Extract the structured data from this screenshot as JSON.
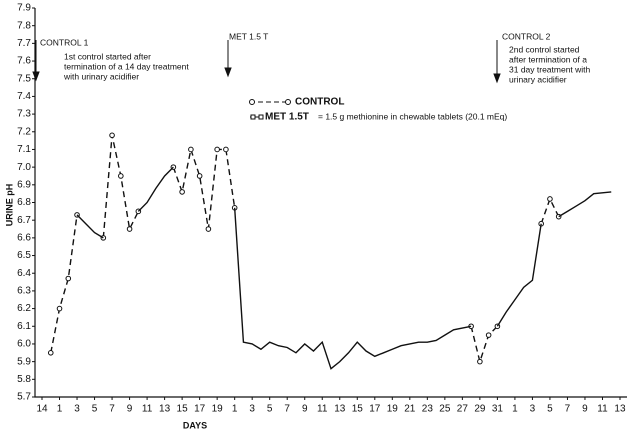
{
  "chart_data": {
    "type": "line",
    "y_label": "URINE pH",
    "x_label": "DAYS",
    "x": [
      1,
      2,
      3,
      4,
      5,
      6,
      7,
      8,
      9,
      10,
      11,
      12,
      13,
      14,
      15,
      16,
      17,
      18,
      19,
      20,
      21,
      22,
      23,
      24,
      25,
      26,
      27,
      28,
      29,
      30,
      31,
      32,
      33,
      34,
      35,
      36,
      37,
      38,
      39,
      40,
      41,
      42,
      43,
      44,
      45,
      46,
      47,
      49,
      50,
      51,
      52,
      53,
      54,
      55,
      56,
      57,
      58,
      59,
      60,
      61,
      62,
      63,
      65
    ],
    "series": [
      {
        "name": "CONTROL",
        "color": "#111111",
        "dashed": true,
        "marker": "circle",
        "values": [
          5.95,
          6.2,
          6.37,
          6.73,
          null,
          null,
          6.6,
          7.18,
          6.95,
          6.65,
          6.75,
          null,
          null,
          null,
          7.0,
          6.86,
          7.1,
          6.95,
          6.65,
          7.1,
          7.1,
          6.77,
          null,
          null,
          null,
          null,
          null,
          null,
          null,
          null,
          null,
          null,
          null,
          null,
          null,
          null,
          null,
          null,
          null,
          null,
          null,
          null,
          null,
          null,
          null,
          null,
          null,
          6.1,
          5.9,
          6.05,
          6.1,
          null,
          null,
          null,
          null,
          6.68,
          6.82,
          6.72,
          null,
          null,
          null,
          null,
          null
        ]
      },
      {
        "name": "MET 1.5T",
        "color": "#111111",
        "dashed": false,
        "marker": "square",
        "values": [
          null,
          null,
          null,
          6.73,
          6.68,
          6.63,
          6.6,
          null,
          null,
          null,
          6.75,
          6.8,
          6.88,
          6.95,
          7.0,
          null,
          null,
          null,
          null,
          null,
          null,
          6.77,
          6.01,
          6.0,
          5.97,
          6.01,
          5.99,
          5.98,
          5.95,
          6.0,
          5.96,
          6.01,
          5.86,
          5.9,
          5.95,
          6.01,
          5.96,
          5.93,
          5.95,
          5.97,
          5.99,
          6.0,
          6.01,
          6.01,
          6.02,
          6.05,
          6.08,
          6.1,
          null,
          null,
          6.1,
          6.18,
          6.25,
          6.32,
          6.36,
          6.68,
          null,
          6.72,
          6.75,
          6.78,
          6.81,
          6.85,
          6.86
        ]
      }
    ],
    "legend_note": "= 1.5 g methionine in chewable tablets  (20.1 mEq)",
    "xlim": [
      -0.8,
      66.8
    ],
    "xticks": [
      {
        "value": 0,
        "label": "14"
      },
      {
        "value": 2,
        "label": "1"
      },
      {
        "value": 4,
        "label": "3"
      },
      {
        "value": 6,
        "label": "5"
      },
      {
        "value": 8,
        "label": "7"
      },
      {
        "value": 10,
        "label": "9"
      },
      {
        "value": 12,
        "label": "11"
      },
      {
        "value": 14,
        "label": "13"
      },
      {
        "value": 16,
        "label": "15"
      },
      {
        "value": 18,
        "label": "17"
      },
      {
        "value": 20,
        "label": "19"
      },
      {
        "value": 22,
        "label": "1"
      },
      {
        "value": 24,
        "label": "3"
      },
      {
        "value": 26,
        "label": "5"
      },
      {
        "value": 28,
        "label": "7"
      },
      {
        "value": 30,
        "label": "9"
      },
      {
        "value": 32,
        "label": "11"
      },
      {
        "value": 34,
        "label": "13"
      },
      {
        "value": 36,
        "label": "15"
      },
      {
        "value": 38,
        "label": "17"
      },
      {
        "value": 40,
        "label": "19"
      },
      {
        "value": 42,
        "label": "21"
      },
      {
        "value": 44,
        "label": "23"
      },
      {
        "value": 46,
        "label": "25"
      },
      {
        "value": 48,
        "label": "27"
      },
      {
        "value": 50,
        "label": "29"
      },
      {
        "value": 52,
        "label": "31"
      },
      {
        "value": 54,
        "label": "1"
      },
      {
        "value": 56,
        "label": "3"
      },
      {
        "value": 58,
        "label": "5"
      },
      {
        "value": 60,
        "label": "7"
      },
      {
        "value": 62,
        "label": "9"
      },
      {
        "value": 64,
        "label": "11"
      },
      {
        "value": 66,
        "label": "13"
      }
    ],
    "ylim": [
      5.7,
      7.9
    ],
    "yticks": [
      5.7,
      5.8,
      5.9,
      {
        "value": 6,
        "label": "6.0"
      },
      6.1,
      6.2,
      6.3,
      6.4,
      6.5,
      6.6,
      6.7,
      6.8,
      6.9,
      {
        "value": 7,
        "label": "7.0"
      },
      7.1,
      7.2,
      7.3,
      7.4,
      7.5,
      7.6,
      7.7,
      7.8,
      7.9
    ],
    "annotations": [
      {
        "title": "CONTROL 1",
        "lines": [
          "1st control started after",
          "termination of a 14 day treatment",
          "with urinary acidifier"
        ]
      },
      {
        "title": "MET 1.5 T",
        "lines": []
      },
      {
        "title": "CONTROL 2",
        "lines": [
          "2nd control started",
          "after termination of a",
          "31 day treatment with",
          "urinary acidifier"
        ]
      }
    ]
  }
}
